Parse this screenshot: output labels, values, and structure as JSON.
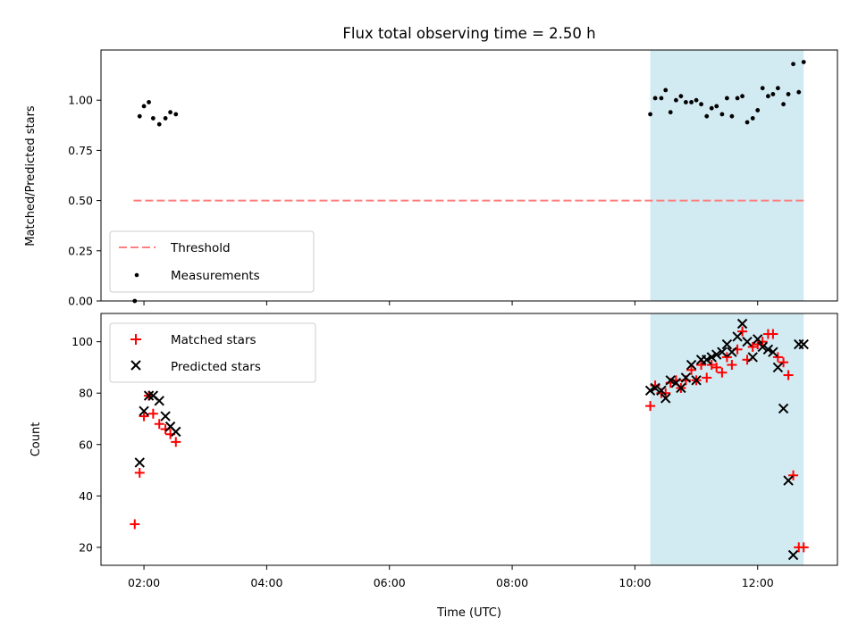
{
  "chart_data": [
    {
      "id": "top",
      "type": "scatter",
      "title": "Flux total observing time = 2.50 h",
      "xlabel": "",
      "ylabel": "Matched/Predicted stars",
      "ylim": [
        0,
        1.25
      ],
      "yticks": [
        0.0,
        0.25,
        0.5,
        0.75,
        1.0
      ],
      "ytick_labels": [
        "0.00",
        "0.25",
        "0.50",
        "0.75",
        "1.00"
      ],
      "shaded_region": {
        "x": [
          10.25,
          12.75
        ],
        "color": "#add8e6"
      },
      "threshold": {
        "name": "Threshold",
        "value": 0.5,
        "x": [
          1.83,
          12.75
        ],
        "color": "#ff7f7f"
      },
      "legend": [
        "Threshold",
        "Measurements"
      ],
      "legend_location": "lower-left",
      "series": [
        {
          "name": "Measurements",
          "marker": "dot",
          "color": "#000000",
          "x": [
            1.85,
            1.93,
            2.0,
            2.08,
            2.15,
            2.25,
            2.35,
            2.43,
            2.52,
            10.25,
            10.33,
            10.43,
            10.5,
            10.58,
            10.67,
            10.75,
            10.83,
            10.92,
            11.0,
            11.08,
            11.17,
            11.25,
            11.33,
            11.42,
            11.5,
            11.58,
            11.67,
            11.75,
            11.83,
            11.92,
            12.0,
            12.08,
            12.17,
            12.25,
            12.33,
            12.42,
            12.5,
            12.58,
            12.67,
            12.75
          ],
          "y": [
            0.0,
            0.92,
            0.97,
            0.99,
            0.91,
            0.88,
            0.91,
            0.94,
            0.93,
            0.93,
            1.01,
            1.01,
            1.05,
            0.94,
            1.0,
            1.02,
            0.99,
            0.99,
            1.0,
            0.98,
            0.92,
            0.96,
            0.97,
            0.93,
            1.01,
            0.92,
            1.01,
            1.02,
            0.89,
            0.91,
            0.95,
            1.06,
            1.02,
            1.03,
            1.06,
            0.98,
            1.03,
            1.18,
            1.04,
            1.19
          ]
        }
      ]
    },
    {
      "id": "bottom",
      "type": "scatter",
      "title": "",
      "xlabel": "Time (UTC)",
      "ylabel": "Count",
      "xlim": [
        1.3,
        13.3
      ],
      "xticks": [
        2,
        4,
        6,
        8,
        10,
        12
      ],
      "xtick_labels": [
        "02:00",
        "04:00",
        "06:00",
        "08:00",
        "10:00",
        "12:00"
      ],
      "ylim": [
        13,
        111
      ],
      "yticks": [
        20,
        40,
        60,
        80,
        100
      ],
      "ytick_labels": [
        "20",
        "40",
        "60",
        "80",
        "100"
      ],
      "shaded_region": {
        "x": [
          10.25,
          12.75
        ],
        "color": "#add8e6"
      },
      "legend": [
        "Matched stars",
        "Predicted stars"
      ],
      "legend_location": "upper-left",
      "series": [
        {
          "name": "Matched stars",
          "marker": "plus",
          "color": "#ff0000",
          "x": [
            1.85,
            1.93,
            2.0,
            2.08,
            2.15,
            2.25,
            2.35,
            2.43,
            2.52,
            10.25,
            10.33,
            10.43,
            10.5,
            10.58,
            10.67,
            10.75,
            10.83,
            10.92,
            11.0,
            11.08,
            11.17,
            11.25,
            11.33,
            11.42,
            11.5,
            11.58,
            11.67,
            11.75,
            11.83,
            11.92,
            12.0,
            12.08,
            12.17,
            12.25,
            12.33,
            12.42,
            12.5,
            12.58,
            12.67,
            12.75
          ],
          "y": [
            29,
            49,
            71,
            79,
            72,
            68,
            66,
            64,
            61,
            75,
            83,
            80,
            80,
            84,
            85,
            82,
            85,
            89,
            85,
            91,
            86,
            91,
            90,
            88,
            94,
            91,
            97,
            104,
            93,
            98,
            99,
            100,
            103,
            103,
            94,
            92,
            87,
            48,
            20,
            20
          ]
        },
        {
          "name": "Predicted stars",
          "marker": "x",
          "color": "#000000",
          "x": [
            1.93,
            2.0,
            2.08,
            2.15,
            2.25,
            2.35,
            2.43,
            2.52,
            10.25,
            10.33,
            10.43,
            10.5,
            10.58,
            10.67,
            10.75,
            10.83,
            10.92,
            11.0,
            11.08,
            11.17,
            11.25,
            11.33,
            11.42,
            11.5,
            11.58,
            11.67,
            11.75,
            11.83,
            11.92,
            12.0,
            12.08,
            12.17,
            12.25,
            12.33,
            12.42,
            12.5,
            12.58,
            12.67,
            12.75
          ],
          "y": [
            53,
            73,
            79,
            79,
            77,
            71,
            67,
            65,
            81,
            82,
            81,
            78,
            85,
            84,
            82,
            86,
            91,
            85,
            93,
            93,
            94,
            95,
            96,
            99,
            96,
            102,
            107,
            100,
            94,
            101,
            98,
            97,
            96,
            90,
            74,
            46,
            17,
            99,
            99
          ]
        }
      ]
    }
  ]
}
